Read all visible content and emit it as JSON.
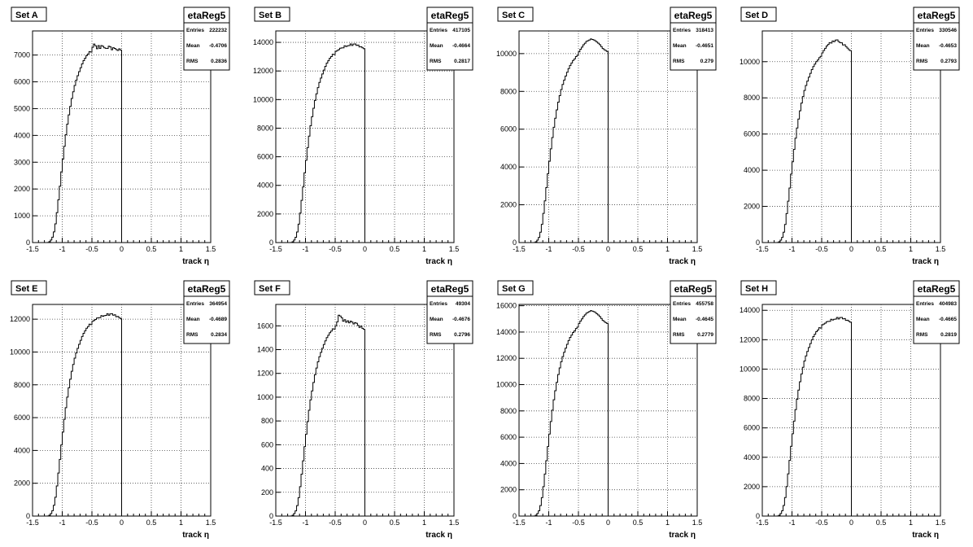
{
  "figure": {
    "x_axis_label": "track η",
    "x_ticks": [
      "-1.5",
      "-1",
      "-0.5",
      "0",
      "0.5",
      "1",
      "1.5"
    ],
    "stat_labels": {
      "entries": "Entries",
      "mean": "Mean",
      "rms": "RMS"
    }
  },
  "chart_data": [
    {
      "type": "bar",
      "panel_title": "Set A",
      "histogram_name": "etaReg5",
      "stats": {
        "entries": "222232",
        "mean": "-0.4706",
        "rms": "0.2836"
      },
      "xlabel": "track η",
      "xlim": [
        -1.5,
        1.5
      ],
      "ylim": [
        0,
        7900
      ],
      "y_ticks": [
        "0",
        "1000",
        "2000",
        "3000",
        "4000",
        "5000",
        "6000",
        "7000"
      ],
      "y_tick_values": [
        0,
        1000,
        2000,
        3000,
        4000,
        5000,
        6000,
        7000
      ],
      "bin_width": 0.025,
      "x_start": -1.25,
      "x_end": 0.0,
      "values": [
        4,
        33,
        95,
        200,
        400,
        700,
        1115,
        1597,
        2104,
        2641,
        3116,
        3593,
        4026,
        4419,
        4765,
        5083,
        5380,
        5630,
        5866,
        6061,
        6228,
        6382,
        6527,
        6669,
        6791,
        6883,
        6979,
        7039,
        7128,
        7111,
        7289,
        7410,
        7347,
        7237,
        7355,
        7245,
        7355,
        7327,
        7270,
        7252,
        7246,
        7331,
        7303,
        7198,
        7275,
        7247,
        7206,
        7170,
        7233,
        7182
      ]
    },
    {
      "type": "bar",
      "panel_title": "Set B",
      "histogram_name": "etaReg5",
      "stats": {
        "entries": "417105",
        "mean": "-0.4664",
        "rms": "0.2817"
      },
      "xlabel": "track η",
      "xlim": [
        -1.5,
        1.5
      ],
      "ylim": [
        0,
        14800
      ],
      "y_ticks": [
        "0",
        "2000",
        "4000",
        "6000",
        "8000",
        "10000",
        "12000",
        "14000"
      ],
      "y_tick_values": [
        0,
        2000,
        4000,
        6000,
        8000,
        10000,
        12000,
        14000
      ],
      "bin_width": 0.025,
      "x_start": -1.25,
      "x_end": 0.0,
      "values": [
        8,
        60,
        175,
        370,
        740,
        1290,
        2066,
        2953,
        3889,
        4880,
        5758,
        6640,
        7440,
        8165,
        8805,
        9392,
        9941,
        10403,
        10840,
        11199,
        11508,
        11793,
        12060,
        12324,
        12548,
        12717,
        12895,
        13006,
        13171,
        13139,
        13372,
        13428,
        13493,
        13592,
        13612,
        13617,
        13759,
        13712,
        13760,
        13776,
        13892,
        13783,
        13880,
        13889,
        13788,
        13812,
        13681,
        13700,
        13617,
        13555
      ]
    },
    {
      "type": "bar",
      "panel_title": "Set C",
      "histogram_name": "etaReg5",
      "stats": {
        "entries": "318413",
        "mean": "-0.4651",
        "rms": "0.279"
      },
      "xlabel": "track η",
      "xlim": [
        -1.5,
        1.5
      ],
      "ylim": [
        0,
        11200
      ],
      "y_ticks": [
        "0",
        "2000",
        "4000",
        "6000",
        "8000",
        "10000"
      ],
      "y_tick_values": [
        0,
        2000,
        4000,
        6000,
        8000,
        10000
      ],
      "bin_width": 0.025,
      "x_start": -1.25,
      "x_end": 0.0,
      "values": [
        6,
        45,
        131,
        276,
        552,
        965,
        1543,
        2206,
        2905,
        3646,
        4303,
        4961,
        5559,
        6101,
        6580,
        7019,
        7428,
        7774,
        8100,
        8368,
        8600,
        8813,
        9012,
        9209,
        9377,
        9503,
        9636,
        9719,
        9842,
        9917,
        10098,
        10228,
        10344,
        10468,
        10550,
        10646,
        10683,
        10722,
        10775,
        10747,
        10722,
        10680,
        10612,
        10551,
        10473,
        10373,
        10271,
        10212,
        10161,
        10113
      ]
    },
    {
      "type": "bar",
      "panel_title": "Set D",
      "histogram_name": "etaReg5",
      "stats": {
        "entries": "330546",
        "mean": "-0.4653",
        "rms": "0.2793"
      },
      "xlabel": "track η",
      "xlim": [
        -1.5,
        1.5
      ],
      "ylim": [
        0,
        11700
      ],
      "y_ticks": [
        "0",
        "2000",
        "4000",
        "6000",
        "8000",
        "10000"
      ],
      "y_tick_values": [
        0,
        2000,
        4000,
        6000,
        8000,
        10000
      ],
      "bin_width": 0.025,
      "x_start": -1.25,
      "x_end": 0.0,
      "values": [
        6,
        47,
        136,
        287,
        573,
        1002,
        1602,
        2290,
        3016,
        3785,
        4467,
        5150,
        5770,
        6333,
        6830,
        7286,
        7711,
        8071,
        8409,
        8687,
        8928,
        9149,
        9356,
        9560,
        9734,
        9866,
        10003,
        10090,
        10218,
        10296,
        10484,
        10619,
        10740,
        10868,
        10953,
        11053,
        11033,
        11145,
        11111,
        11192,
        11206,
        11114,
        11052,
        11043,
        10921,
        10934,
        10832,
        10751,
        10659,
        10608
      ]
    },
    {
      "type": "bar",
      "panel_title": "Set E",
      "histogram_name": "etaReg5",
      "stats": {
        "entries": "364954",
        "mean": "-0.4689",
        "rms": "0.2834"
      },
      "xlabel": "track η",
      "xlim": [
        -1.5,
        1.5
      ],
      "ylim": [
        0,
        12900
      ],
      "y_ticks": [
        "0",
        "2000",
        "4000",
        "6000",
        "8000",
        "10000",
        "12000"
      ],
      "y_tick_values": [
        0,
        2000,
        4000,
        6000,
        8000,
        10000,
        12000
      ],
      "bin_width": 0.025,
      "x_start": -1.25,
      "x_end": 0.0,
      "values": [
        7,
        53,
        155,
        328,
        656,
        1148,
        1835,
        2623,
        3454,
        4334,
        5115,
        5896,
        6606,
        7251,
        7820,
        8341,
        8828,
        9239,
        9626,
        9944,
        10220,
        10472,
        10710,
        10944,
        11141,
        11292,
        11449,
        11548,
        11694,
        11667,
        11873,
        11923,
        11981,
        12069,
        12087,
        12091,
        12217,
        12176,
        12218,
        12232,
        12335,
        12238,
        12325,
        12332,
        12243,
        12265,
        12148,
        12165,
        12092,
        12036
      ]
    },
    {
      "type": "bar",
      "panel_title": "Set F",
      "histogram_name": "etaReg5",
      "stats": {
        "entries": "49304",
        "mean": "-0.4676",
        "rms": "0.2796"
      },
      "xlabel": "track η",
      "xlim": [
        -1.5,
        1.5
      ],
      "ylim": [
        0,
        1780
      ],
      "y_ticks": [
        "0",
        "200",
        "400",
        "600",
        "800",
        "1000",
        "1200",
        "1400",
        "1600"
      ],
      "y_tick_values": [
        0,
        200,
        400,
        600,
        800,
        1000,
        1200,
        1400,
        1600
      ],
      "bin_width": 0.025,
      "x_start": -1.25,
      "x_end": 0.0,
      "values": [
        1,
        7,
        21,
        44,
        88,
        155,
        247,
        353,
        465,
        584,
        689,
        794,
        890,
        977,
        1053,
        1124,
        1189,
        1245,
        1297,
        1340,
        1377,
        1411,
        1443,
        1474,
        1501,
        1521,
        1542,
        1556,
        1575,
        1572,
        1600,
        1634,
        1689,
        1682,
        1668,
        1639,
        1652,
        1630,
        1642,
        1625,
        1640,
        1631,
        1616,
        1627,
        1622,
        1604,
        1587,
        1599,
        1579,
        1570
      ]
    },
    {
      "type": "bar",
      "panel_title": "Set G",
      "histogram_name": "etaReg5",
      "stats": {
        "entries": "455758",
        "mean": "-0.4645",
        "rms": "0.2779"
      },
      "xlabel": "track η",
      "xlim": [
        -1.5,
        1.5
      ],
      "ylim": [
        0,
        16100
      ],
      "y_ticks": [
        "0",
        "2000",
        "4000",
        "6000",
        "8000",
        "10000",
        "12000",
        "14000",
        "16000"
      ],
      "y_tick_values": [
        0,
        2000,
        4000,
        6000,
        8000,
        10000,
        12000,
        14000,
        16000
      ],
      "bin_width": 0.025,
      "x_start": -1.25,
      "x_end": 0.0,
      "values": [
        9,
        66,
        190,
        400,
        800,
        1400,
        2238,
        3199,
        4213,
        5286,
        6238,
        7191,
        8057,
        8844,
        9538,
        10174,
        10768,
        11269,
        11741,
        12130,
        12465,
        12773,
        13063,
        13349,
        13590,
        13773,
        13966,
        14088,
        14266,
        14373,
        14650,
        14839,
        15003,
        15182,
        15300,
        15438,
        15499,
        15555,
        15629,
        15588,
        15551,
        15488,
        15387,
        15296,
        15181,
        15034,
        14882,
        14798,
        14718,
        14650
      ]
    },
    {
      "type": "bar",
      "panel_title": "Set H",
      "histogram_name": "etaReg5",
      "stats": {
        "entries": "404983",
        "mean": "-0.4665",
        "rms": "0.2819"
      },
      "xlabel": "track η",
      "xlim": [
        -1.5,
        1.5
      ],
      "ylim": [
        0,
        14400
      ],
      "y_ticks": [
        "0",
        "2000",
        "4000",
        "6000",
        "8000",
        "10000",
        "12000",
        "14000"
      ],
      "y_tick_values": [
        0,
        2000,
        4000,
        6000,
        8000,
        10000,
        12000,
        14000
      ],
      "bin_width": 0.025,
      "x_start": -1.25,
      "x_end": 0.0,
      "values": [
        8,
        58,
        170,
        359,
        719,
        1258,
        2010,
        2874,
        3785,
        4749,
        5604,
        6461,
        7239,
        7945,
        8569,
        9140,
        9673,
        10124,
        10548,
        10897,
        11198,
        11474,
        11736,
        11992,
        12209,
        12373,
        12546,
        12656,
        12814,
        12784,
        13010,
        13065,
        13128,
        13225,
        13245,
        13249,
        13386,
        13343,
        13388,
        13403,
        13516,
        13410,
        13505,
        13513,
        13415,
        13439,
        13311,
        13330,
        13250,
        13189
      ]
    }
  ]
}
